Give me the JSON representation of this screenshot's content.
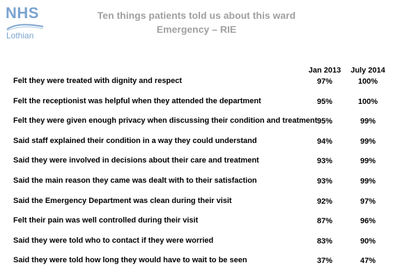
{
  "logo": {
    "main": "NHS",
    "sub": "Lothian"
  },
  "header": {
    "title": "Ten things patients told us about this ward",
    "subtitle": "Emergency – RIE"
  },
  "columns": [
    "Jan 2013",
    "July 2014"
  ],
  "rows": [
    {
      "label": "Felt they were treated with dignity and respect",
      "jan": "97%",
      "jul": "100%"
    },
    {
      "label": "Felt the receptionist was helpful when they attended the department",
      "jan": "95%",
      "jul": "100%"
    },
    {
      "label": "Felt they were given enough privacy when discussing their condition and treatment",
      "jan": "95%",
      "jul": "99%"
    },
    {
      "label": "Said staff explained their condition in a way they could understand",
      "jan": "94%",
      "jul": "99%"
    },
    {
      "label": "Said they were involved in decisions about their care and treatment",
      "jan": "93%",
      "jul": "99%"
    },
    {
      "label": "Said the main reason they came was dealt with to their satisfaction",
      "jan": "93%",
      "jul": "99%"
    },
    {
      "label": "Said the Emergency Department was clean during their visit",
      "jan": "92%",
      "jul": "97%"
    },
    {
      "label": "Felt their pain was well controlled during their visit",
      "jan": "87%",
      "jul": "96%"
    },
    {
      "label": "Said they were told who to contact if they were worried",
      "jan": "83%",
      "jul": "90%"
    },
    {
      "label": "Said they were told how long they would have to wait to be seen",
      "jan": "37%",
      "jul": "47%"
    }
  ]
}
